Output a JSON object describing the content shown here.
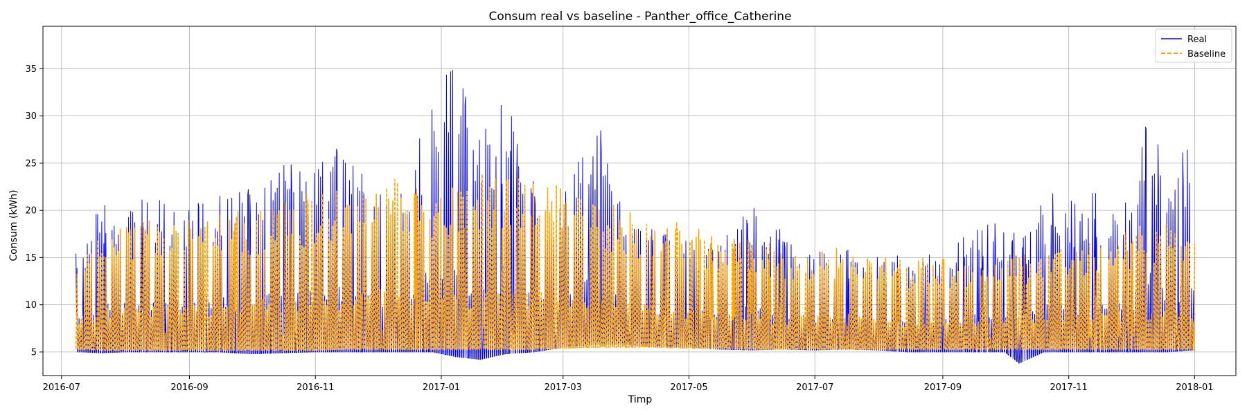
{
  "chart_data": {
    "type": "line",
    "title": "Consum real vs baseline - Panther_office_Catherine",
    "xlabel": "Timp",
    "ylabel": "Consum (kWh)",
    "x_ticks": [
      "2016-07",
      "2016-09",
      "2016-11",
      "2017-01",
      "2017-03",
      "2017-05",
      "2017-07",
      "2017-09",
      "2017-11",
      "2018-01"
    ],
    "y_ticks": [
      5,
      10,
      15,
      20,
      25,
      30,
      35
    ],
    "xlim": [
      "2016-06-22",
      "2018-01-21"
    ],
    "ylim": [
      2.5,
      39.5
    ],
    "grid": true,
    "legend_position": "top-right",
    "x_range": [
      "2016-07-08",
      "2018-01-01"
    ],
    "series": [
      {
        "name": "Real",
        "color": "#0000ff",
        "style": "solid",
        "envelope": [
          {
            "x": "2016-07-10",
            "min": 5.0,
            "max": 16.0
          },
          {
            "x": "2016-07-20",
            "min": 4.9,
            "max": 22.0
          },
          {
            "x": "2016-08-01",
            "min": 5.0,
            "max": 21.5
          },
          {
            "x": "2016-08-15",
            "min": 5.0,
            "max": 22.5
          },
          {
            "x": "2016-09-01",
            "min": 5.0,
            "max": 21.0
          },
          {
            "x": "2016-09-15",
            "min": 5.0,
            "max": 23.0
          },
          {
            "x": "2016-10-01",
            "min": 4.8,
            "max": 22.5
          },
          {
            "x": "2016-10-15",
            "min": 4.9,
            "max": 25.5
          },
          {
            "x": "2016-11-01",
            "min": 5.0,
            "max": 27.0
          },
          {
            "x": "2016-11-15",
            "min": 5.0,
            "max": 28.0
          },
          {
            "x": "2016-12-01",
            "min": 5.0,
            "max": 23.5
          },
          {
            "x": "2016-12-15",
            "min": 5.0,
            "max": 23.0
          },
          {
            "x": "2016-12-28",
            "min": 5.0,
            "max": 35.5
          },
          {
            "x": "2017-01-08",
            "min": 4.5,
            "max": 38.2
          },
          {
            "x": "2017-01-20",
            "min": 4.2,
            "max": 29.0
          },
          {
            "x": "2017-02-01",
            "min": 4.8,
            "max": 32.0
          },
          {
            "x": "2017-02-15",
            "min": 5.0,
            "max": 23.0
          },
          {
            "x": "2017-03-01",
            "min": 5.5,
            "max": 22.0
          },
          {
            "x": "2017-03-15",
            "min": 5.8,
            "max": 31.8
          },
          {
            "x": "2017-04-01",
            "min": 5.8,
            "max": 19.5
          },
          {
            "x": "2017-04-15",
            "min": 5.5,
            "max": 18.5
          },
          {
            "x": "2017-05-01",
            "min": 5.5,
            "max": 18.0
          },
          {
            "x": "2017-05-15",
            "min": 5.3,
            "max": 17.5
          },
          {
            "x": "2017-06-01",
            "min": 5.2,
            "max": 21.0
          },
          {
            "x": "2017-06-15",
            "min": 5.3,
            "max": 18.0
          },
          {
            "x": "2017-07-01",
            "min": 5.2,
            "max": 16.5
          },
          {
            "x": "2017-07-15",
            "min": 5.3,
            "max": 16.0
          },
          {
            "x": "2017-08-01",
            "min": 5.2,
            "max": 15.5
          },
          {
            "x": "2017-08-15",
            "min": 5.0,
            "max": 15.5
          },
          {
            "x": "2017-09-01",
            "min": 5.0,
            "max": 16.5
          },
          {
            "x": "2017-09-15",
            "min": 5.0,
            "max": 18.0
          },
          {
            "x": "2017-10-01",
            "min": 5.0,
            "max": 19.0
          },
          {
            "x": "2017-10-08",
            "min": 3.8,
            "max": 17.0
          },
          {
            "x": "2017-10-20",
            "min": 5.0,
            "max": 22.0
          },
          {
            "x": "2017-11-01",
            "min": 5.0,
            "max": 21.5
          },
          {
            "x": "2017-11-15",
            "min": 5.0,
            "max": 22.0
          },
          {
            "x": "2017-12-01",
            "min": 5.0,
            "max": 22.0
          },
          {
            "x": "2017-12-10",
            "min": 5.0,
            "max": 32.5
          },
          {
            "x": "2017-12-20",
            "min": 5.0,
            "max": 22.0
          },
          {
            "x": "2017-12-30",
            "min": 5.2,
            "max": 29.2
          }
        ]
      },
      {
        "name": "Baseline",
        "color": "#ffa500",
        "style": "dashed",
        "envelope": [
          {
            "x": "2016-07-10",
            "min": 5.3,
            "max": 15.5
          },
          {
            "x": "2016-07-20",
            "min": 5.2,
            "max": 19.5
          },
          {
            "x": "2016-08-01",
            "min": 5.2,
            "max": 19.5
          },
          {
            "x": "2016-08-15",
            "min": 5.2,
            "max": 20.0
          },
          {
            "x": "2016-09-01",
            "min": 5.2,
            "max": 20.0
          },
          {
            "x": "2016-09-15",
            "min": 5.2,
            "max": 20.0
          },
          {
            "x": "2016-10-01",
            "min": 5.2,
            "max": 20.0
          },
          {
            "x": "2016-10-15",
            "min": 5.2,
            "max": 21.0
          },
          {
            "x": "2016-11-01",
            "min": 5.2,
            "max": 22.0
          },
          {
            "x": "2016-11-15",
            "min": 5.3,
            "max": 23.0
          },
          {
            "x": "2016-12-01",
            "min": 5.3,
            "max": 24.0
          },
          {
            "x": "2016-12-15",
            "min": 5.3,
            "max": 23.5
          },
          {
            "x": "2017-01-01",
            "min": 5.3,
            "max": 23.0
          },
          {
            "x": "2017-01-15",
            "min": 5.3,
            "max": 23.5
          },
          {
            "x": "2017-02-01",
            "min": 5.3,
            "max": 24.5
          },
          {
            "x": "2017-02-15",
            "min": 5.3,
            "max": 25.0
          },
          {
            "x": "2017-03-01",
            "min": 5.4,
            "max": 24.0
          },
          {
            "x": "2017-03-15",
            "min": 5.5,
            "max": 22.0
          },
          {
            "x": "2017-04-01",
            "min": 5.5,
            "max": 20.0
          },
          {
            "x": "2017-04-15",
            "min": 5.5,
            "max": 19.5
          },
          {
            "x": "2017-05-01",
            "min": 5.4,
            "max": 18.5
          },
          {
            "x": "2017-05-15",
            "min": 5.4,
            "max": 17.5
          },
          {
            "x": "2017-06-01",
            "min": 5.3,
            "max": 17.0
          },
          {
            "x": "2017-06-15",
            "min": 5.3,
            "max": 16.5
          },
          {
            "x": "2017-07-01",
            "min": 5.3,
            "max": 16.5
          },
          {
            "x": "2017-07-15",
            "min": 5.3,
            "max": 16.0
          },
          {
            "x": "2017-08-01",
            "min": 5.3,
            "max": 15.5
          },
          {
            "x": "2017-08-15",
            "min": 5.3,
            "max": 15.0
          },
          {
            "x": "2017-09-01",
            "min": 5.3,
            "max": 15.0
          },
          {
            "x": "2017-09-15",
            "min": 5.3,
            "max": 15.0
          },
          {
            "x": "2017-10-01",
            "min": 5.3,
            "max": 15.5
          },
          {
            "x": "2017-10-15",
            "min": 5.3,
            "max": 16.0
          },
          {
            "x": "2017-11-01",
            "min": 5.3,
            "max": 16.5
          },
          {
            "x": "2017-11-15",
            "min": 5.3,
            "max": 17.0
          },
          {
            "x": "2017-12-01",
            "min": 5.3,
            "max": 18.0
          },
          {
            "x": "2017-12-15",
            "min": 5.3,
            "max": 19.0
          },
          {
            "x": "2017-12-30",
            "min": 5.3,
            "max": 17.5
          }
        ]
      }
    ]
  }
}
